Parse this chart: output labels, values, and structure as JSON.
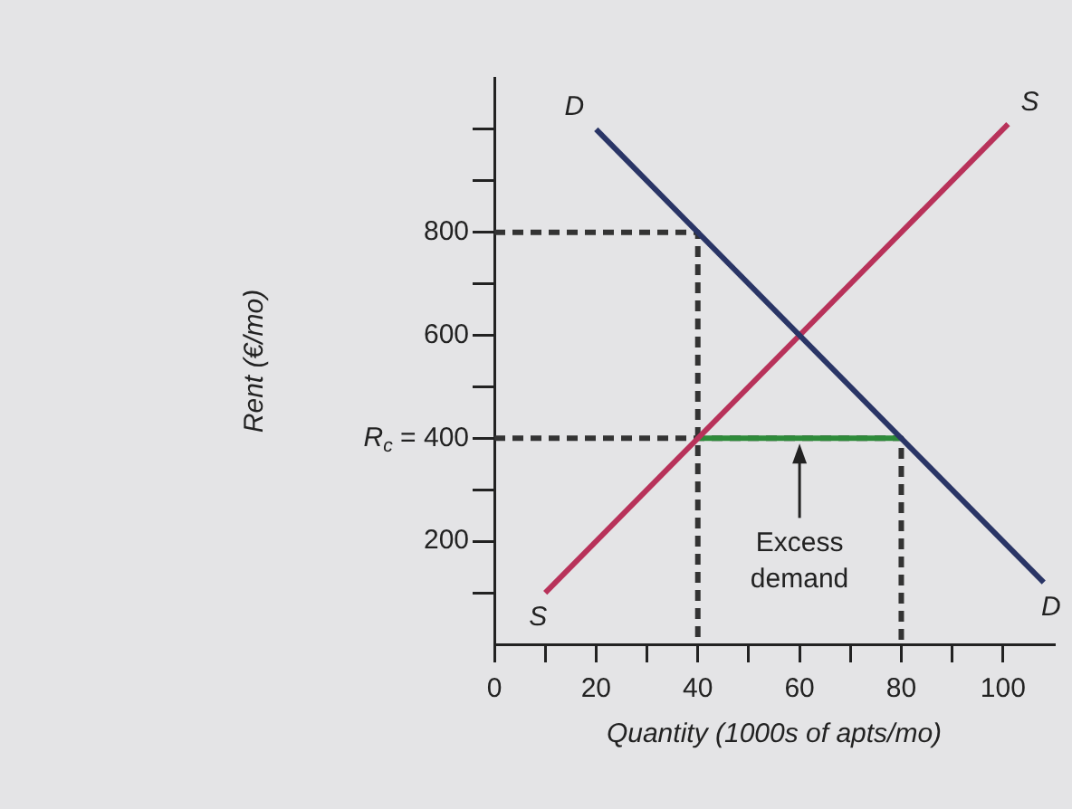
{
  "chart_data": {
    "type": "line",
    "xlabel": "Quantity (1000s of apts/mo)",
    "ylabel": "Rent (€/mo)",
    "xlim": [
      0,
      110
    ],
    "xticks": [
      {
        "value": 0,
        "label": "0"
      },
      {
        "value": 10,
        "label": null
      },
      20,
      {
        "value": 30,
        "label": null
      },
      40,
      {
        "value": 50,
        "label": null
      },
      60,
      {
        "value": 70,
        "label": null
      },
      80,
      {
        "value": 90,
        "label": null
      },
      100
    ],
    "ylim": [
      0,
      1100
    ],
    "yticks": [
      {
        "value": 100,
        "label": null
      },
      200,
      {
        "value": 300,
        "label": null
      },
      {
        "value": 400,
        "label": "R$_{c}$ = 400"
      },
      {
        "value": 500,
        "label": null
      },
      600,
      {
        "value": 700,
        "label": null
      },
      800,
      {
        "value": 900,
        "label": null
      },
      {
        "value": 1000,
        "label": null
      }
    ],
    "series": [
      {
        "name": "D",
        "color": "#2a3566",
        "x": [
          20,
          108
        ],
        "values": [
          1000,
          120
        ]
      },
      {
        "name": "S",
        "color": "#b8325a",
        "x": [
          10,
          101
        ],
        "values": [
          100,
          1010
        ]
      },
      {
        "color": "#2e8b3a",
        "x": [
          40,
          80
        ],
        "values": [
          400,
          400
        ]
      },
      {
        "color": "#333333",
        "line_style": "dashed",
        "x": [
          0,
          40,
          40
        ],
        "values": [
          800,
          800,
          0
        ]
      },
      {
        "color": "#333333",
        "line_style": "dashed",
        "x": [
          0,
          80,
          80
        ],
        "values": [
          400,
          400,
          0
        ]
      }
    ],
    "annotations": [
      {
        "text": "Excess demand",
        "x": 60,
        "y": 400
      }
    ],
    "marker": "none",
    "grid": false,
    "legend": false
  }
}
